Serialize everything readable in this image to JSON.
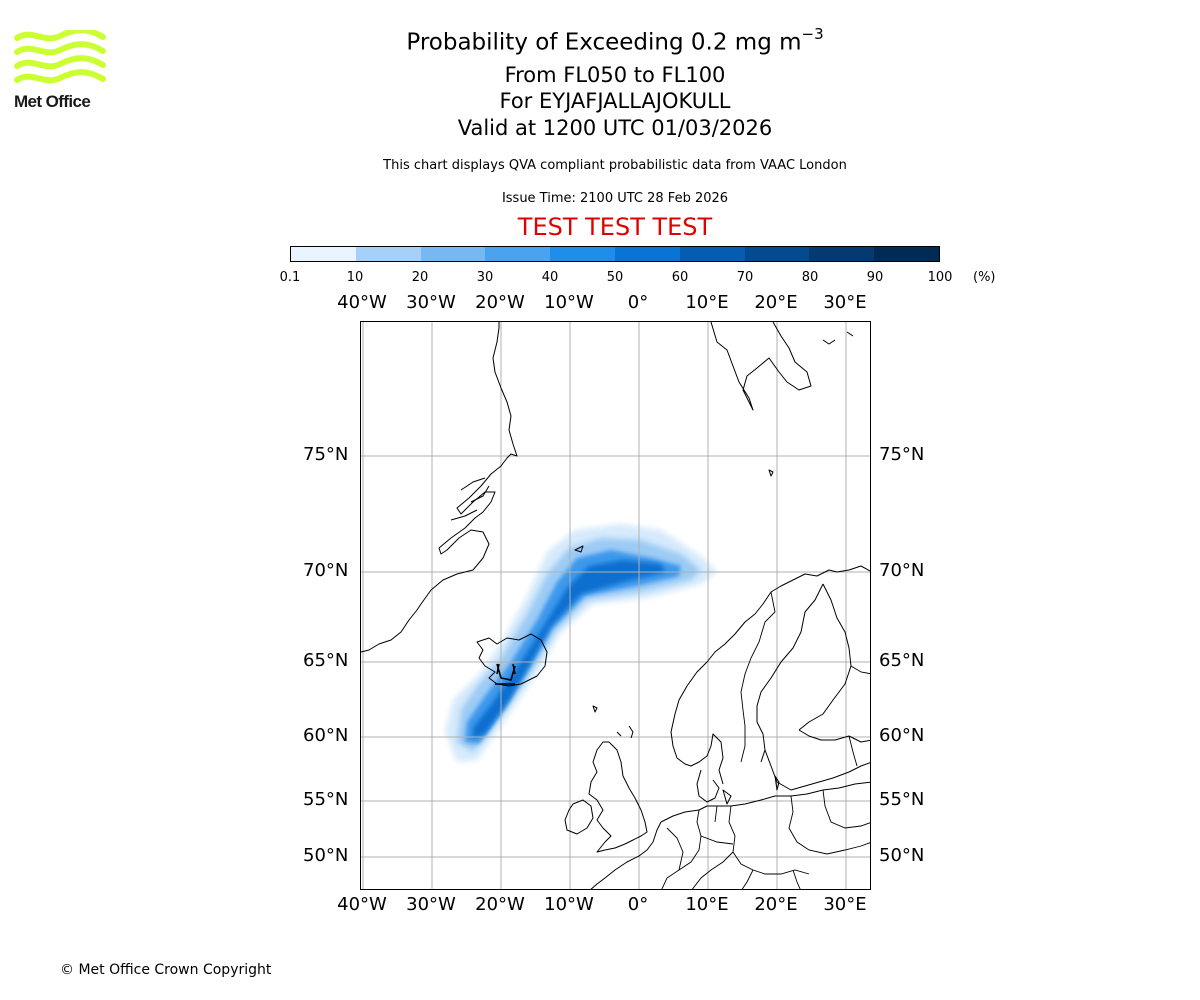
{
  "brand": {
    "name": "Met Office",
    "logo_color": "#ccff33"
  },
  "header": {
    "title_main": "Probability of Exceeding 0.2 mg m",
    "title_exponent": "−3",
    "level_range": "From FL050 to FL100",
    "volcano": "For EYJAFJALLAJOKULL",
    "valid_time": "Valid at 1200 UTC 01/03/2026",
    "description": "This chart displays QVA compliant probabilistic data from VAAC London",
    "issue_time": "Issue Time: 2100 UTC 28 Feb 2026",
    "test_banner": "TEST TEST TEST",
    "test_color": "#e00000"
  },
  "colorbar": {
    "labels": [
      "0.1",
      "10",
      "20",
      "30",
      "40",
      "50",
      "60",
      "70",
      "80",
      "90",
      "100"
    ],
    "unit": "(%)",
    "colors": [
      "#eaf4ff",
      "#c9e3fb",
      "#a6d0f7",
      "#76b8f2",
      "#4aa3ef",
      "#1f8eea",
      "#0a74d6",
      "#055cb0",
      "#044a90",
      "#033a72",
      "#012a55"
    ]
  },
  "map": {
    "lon_labels": [
      "40°W",
      "30°W",
      "20°W",
      "10°W",
      "0°",
      "10°E",
      "20°E",
      "30°E"
    ],
    "lat_labels": [
      "75°N",
      "70°N",
      "65°N",
      "60°N",
      "55°N",
      "50°N"
    ]
  },
  "footer": {
    "copyright": "© Met Office Crown Copyright"
  }
}
